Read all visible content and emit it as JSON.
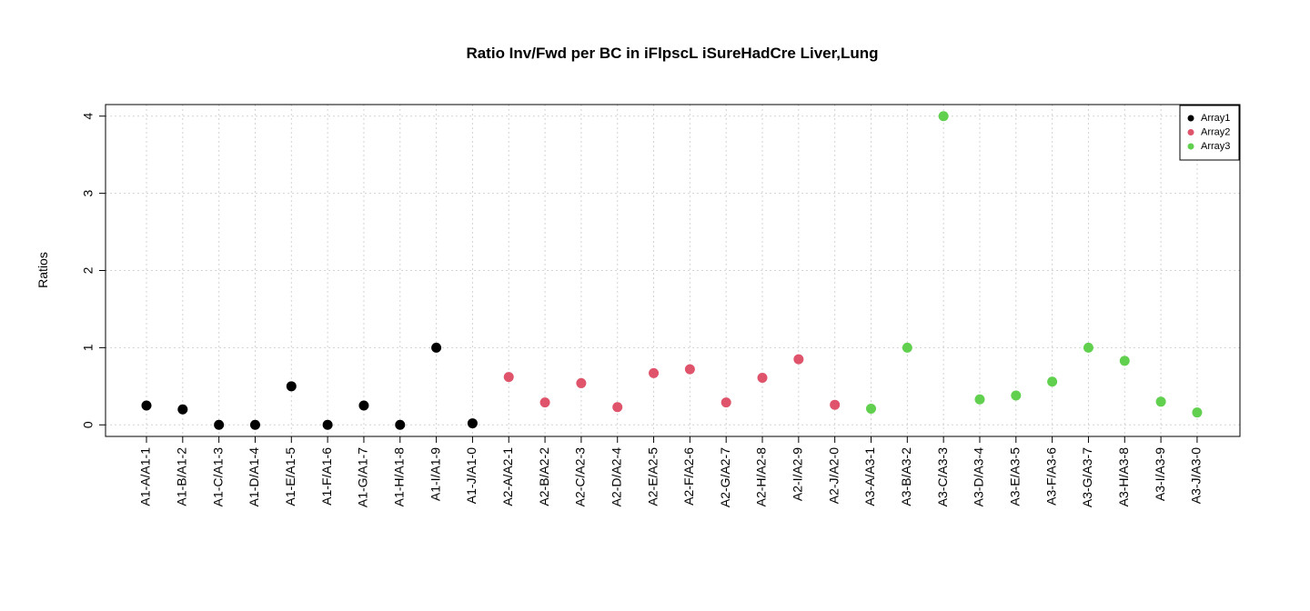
{
  "chart_data": {
    "type": "scatter",
    "title": "Ratio Inv/Fwd per BC in iFlpscL iSureHadCre Liver,Lung",
    "xlabel": "",
    "ylabel": "Ratios",
    "ylim": [
      -0.15,
      4.15
    ],
    "yticks": [
      0,
      1,
      2,
      3,
      4
    ],
    "grid": true,
    "legend_position": "top-right",
    "categories": [
      "A1-A/A1-1",
      "A1-B/A1-2",
      "A1-C/A1-3",
      "A1-D/A1-4",
      "A1-E/A1-5",
      "A1-F/A1-6",
      "A1-G/A1-7",
      "A1-H/A1-8",
      "A1-I/A1-9",
      "A1-J/A1-0",
      "A2-A/A2-1",
      "A2-B/A2-2",
      "A2-C/A2-3",
      "A2-D/A2-4",
      "A2-E/A2-5",
      "A2-F/A2-6",
      "A2-G/A2-7",
      "A2-H/A2-8",
      "A2-I/A2-9",
      "A2-J/A2-0",
      "A3-A/A3-1",
      "A3-B/A3-2",
      "A3-C/A3-3",
      "A3-D/A3-4",
      "A3-E/A3-5",
      "A3-F/A3-6",
      "A3-G/A3-7",
      "A3-H/A3-8",
      "A3-I/A3-9",
      "A3-J/A3-0"
    ],
    "series": [
      {
        "name": "Array1",
        "color": "#000000",
        "start_index": 0,
        "values": [
          0.25,
          0.2,
          0.0,
          0.0,
          0.5,
          0.0,
          0.25,
          0.0,
          1.0,
          0.02
        ]
      },
      {
        "name": "Array2",
        "color": "#DF536B",
        "start_index": 10,
        "values": [
          0.62,
          0.29,
          0.54,
          0.23,
          0.67,
          0.72,
          0.29,
          0.61,
          0.85,
          0.26
        ]
      },
      {
        "name": "Array3",
        "color": "#61D04F",
        "start_index": 20,
        "values": [
          0.21,
          1.0,
          4.0,
          0.33,
          0.38,
          0.56,
          1.0,
          0.83,
          0.3,
          0.16
        ]
      }
    ]
  }
}
